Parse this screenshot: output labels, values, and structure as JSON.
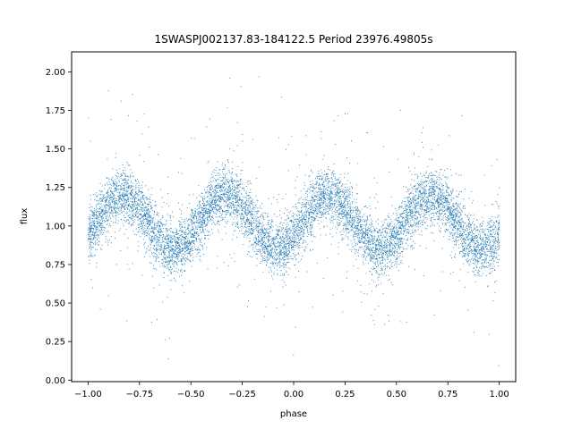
{
  "chart_data": {
    "type": "scatter",
    "title": "1SWASPJ002137.83-184122.5 Period 23976.49805s",
    "xlabel": "phase",
    "ylabel": "flux",
    "xlim": [
      -1.08,
      1.08
    ],
    "ylim": [
      -0.01,
      2.13
    ],
    "xticks": [
      -1.0,
      -0.75,
      -0.5,
      -0.25,
      0.0,
      0.25,
      0.5,
      0.75,
      1.0
    ],
    "xtick_labels": [
      "−1.00",
      "−0.75",
      "−0.50",
      "−0.25",
      "0.00",
      "0.25",
      "0.50",
      "0.75",
      "1.00"
    ],
    "yticks": [
      0.0,
      0.25,
      0.5,
      0.75,
      1.0,
      1.25,
      1.5,
      1.75,
      2.0
    ],
    "ytick_labels": [
      "0.00",
      "0.25",
      "0.50",
      "0.75",
      "1.00",
      "1.25",
      "1.50",
      "1.75",
      "2.00"
    ],
    "grid": false,
    "marker_color": "#1f77b4",
    "series": [
      {
        "description_of_shape": "phase-folded light curve, two cycles",
        "x_range": [
          -1.0,
          1.0
        ],
        "maxima": [
          {
            "x": -0.83,
            "y": 1.2
          },
          {
            "x": -0.33,
            "y": 1.2
          },
          {
            "x": 0.17,
            "y": 1.2
          },
          {
            "x": 0.67,
            "y": 1.2
          }
        ],
        "minima": [
          {
            "x": -0.58,
            "y": 0.85
          },
          {
            "x": -0.08,
            "y": 0.85
          },
          {
            "x": 0.42,
            "y": 0.85
          },
          {
            "x": 0.92,
            "y": 0.85
          }
        ],
        "scatter_spread": 0.09
      }
    ]
  }
}
